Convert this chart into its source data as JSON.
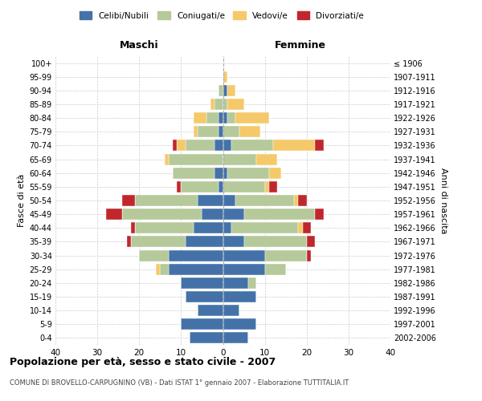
{
  "age_groups": [
    "0-4",
    "5-9",
    "10-14",
    "15-19",
    "20-24",
    "25-29",
    "30-34",
    "35-39",
    "40-44",
    "45-49",
    "50-54",
    "55-59",
    "60-64",
    "65-69",
    "70-74",
    "75-79",
    "80-84",
    "85-89",
    "90-94",
    "95-99",
    "100+"
  ],
  "birth_years": [
    "2002-2006",
    "1997-2001",
    "1992-1996",
    "1987-1991",
    "1982-1986",
    "1977-1981",
    "1972-1976",
    "1967-1971",
    "1962-1966",
    "1957-1961",
    "1952-1956",
    "1947-1951",
    "1942-1946",
    "1937-1941",
    "1932-1936",
    "1927-1931",
    "1922-1926",
    "1917-1921",
    "1912-1916",
    "1907-1911",
    "≤ 1906"
  ],
  "maschi": {
    "celibi": [
      8,
      10,
      6,
      9,
      10,
      13,
      13,
      9,
      7,
      5,
      6,
      1,
      2,
      0,
      2,
      1,
      1,
      0,
      0,
      0,
      0
    ],
    "coniugati": [
      0,
      0,
      0,
      0,
      0,
      2,
      7,
      13,
      14,
      19,
      15,
      9,
      10,
      13,
      7,
      5,
      3,
      2,
      1,
      0,
      0
    ],
    "vedovi": [
      0,
      0,
      0,
      0,
      0,
      1,
      0,
      0,
      0,
      0,
      0,
      0,
      0,
      1,
      2,
      1,
      3,
      1,
      0,
      0,
      0
    ],
    "divorziati": [
      0,
      0,
      0,
      0,
      0,
      0,
      0,
      1,
      1,
      4,
      3,
      1,
      0,
      0,
      1,
      0,
      0,
      0,
      0,
      0,
      0
    ]
  },
  "femmine": {
    "nubili": [
      6,
      8,
      4,
      8,
      6,
      10,
      10,
      5,
      2,
      5,
      3,
      0,
      1,
      0,
      2,
      0,
      1,
      0,
      1,
      0,
      0
    ],
    "coniugate": [
      0,
      0,
      0,
      0,
      2,
      5,
      10,
      15,
      16,
      17,
      14,
      10,
      10,
      8,
      10,
      4,
      2,
      1,
      0,
      0,
      0
    ],
    "vedove": [
      0,
      0,
      0,
      0,
      0,
      0,
      0,
      0,
      1,
      0,
      1,
      1,
      3,
      5,
      10,
      5,
      8,
      4,
      2,
      1,
      0
    ],
    "divorziate": [
      0,
      0,
      0,
      0,
      0,
      0,
      1,
      2,
      2,
      2,
      2,
      2,
      0,
      0,
      2,
      0,
      0,
      0,
      0,
      0,
      0
    ]
  },
  "colors": {
    "celibi": "#4472a8",
    "coniugati": "#b5c99a",
    "vedovi": "#f5c96a",
    "divorziati": "#c0272d"
  },
  "xlim": 40,
  "title": "Popolazione per età, sesso e stato civile - 2007",
  "subtitle": "COMUNE DI BROVELLO-CARPUGNINO (VB) - Dati ISTAT 1° gennaio 2007 - Elaborazione TUTTITALIA.IT",
  "ylabel_left": "Fasce di età",
  "ylabel_right": "Anni di nascita"
}
